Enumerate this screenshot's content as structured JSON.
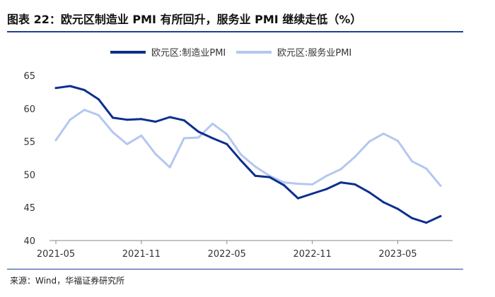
{
  "header": {
    "title": "图表 22：欧元区制造业 PMI 有所回升，服务业 PMI 继续走低（%）"
  },
  "footer": {
    "source": "来源：Wind，华福证券研究所"
  },
  "colors": {
    "manufacturing": "#0b2f8f",
    "services": "#b4c7f0",
    "rule": "#1f3f8f",
    "axis": "#8a8a8a"
  },
  "chart_data": {
    "type": "line",
    "title": "欧元区制造业 PMI 有所回升，服务业 PMI 继续走低（%）",
    "xlabel": "",
    "ylabel": "",
    "ylim": [
      40,
      65
    ],
    "yticks": [
      "40",
      "45",
      "50",
      "55",
      "60",
      "65"
    ],
    "xtick_labels": [
      "2021-05",
      "2021-11",
      "2022-05",
      "2022-11",
      "2023-05"
    ],
    "x": [
      "2021-05",
      "2021-06",
      "2021-07",
      "2021-08",
      "2021-09",
      "2021-10",
      "2021-11",
      "2021-12",
      "2022-01",
      "2022-02",
      "2022-03",
      "2022-04",
      "2022-05",
      "2022-06",
      "2022-07",
      "2022-08",
      "2022-09",
      "2022-10",
      "2022-11",
      "2022-12",
      "2023-01",
      "2023-02",
      "2023-03",
      "2023-04",
      "2023-05",
      "2023-06",
      "2023-07",
      "2023-08"
    ],
    "legend_position": "top",
    "series": [
      {
        "name": "欧元区:制造业PMI",
        "values": [
          63.1,
          63.4,
          62.8,
          61.4,
          58.6,
          58.3,
          58.4,
          58.0,
          58.7,
          58.2,
          56.5,
          55.5,
          54.6,
          52.1,
          49.8,
          49.6,
          48.4,
          46.4,
          47.1,
          47.8,
          48.8,
          48.5,
          47.3,
          45.8,
          44.8,
          43.4,
          42.7,
          43.7
        ]
      },
      {
        "name": "欧元区:服务业PMI",
        "values": [
          55.2,
          58.3,
          59.8,
          59.0,
          56.4,
          54.6,
          55.9,
          53.1,
          51.1,
          55.5,
          55.6,
          57.7,
          56.1,
          53.0,
          51.2,
          49.8,
          48.8,
          48.6,
          48.5,
          49.8,
          50.8,
          52.7,
          55.0,
          56.2,
          55.1,
          52.0,
          50.9,
          48.3
        ]
      }
    ]
  }
}
